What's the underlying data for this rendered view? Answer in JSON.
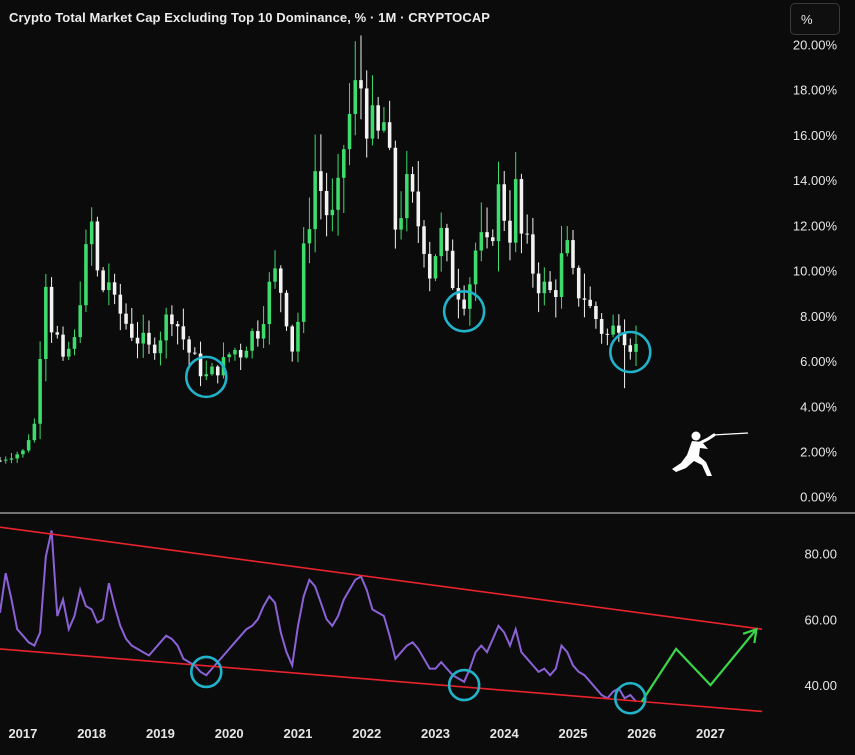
{
  "header": {
    "title": "Crypto Total Market Cap Excluding Top 10 Dominance, % · 1M · CRYPTOCAP",
    "unit_button": "%"
  },
  "colors": {
    "background": "#0b0b0c",
    "up_candle": "#3ddc6c",
    "down_candle": "#f2f2f2",
    "rsi_line": "#8b62d6",
    "trendline": "#e8232c",
    "highlight_circle": "#21b3c9",
    "projection_arrow": "#39d84a",
    "axis_text": "#e6e6e6",
    "divider": "#d8d8d8"
  },
  "icons": [
    "fencer-logo-icon"
  ],
  "chart_data": [
    {
      "type": "candlestick",
      "title": "Crypto Total Market Cap Excluding Top 10 Dominance, % · 1M · CRYPTOCAP",
      "x_axis": {
        "type": "date",
        "ticks": [
          "2017",
          "2018",
          "2019",
          "2020",
          "2021",
          "2022",
          "2023",
          "2024",
          "2025",
          "2026",
          "2027"
        ],
        "range": [
          "2016-09-01",
          "2028-02-01"
        ]
      },
      "y_axis": {
        "ticks": [
          "0.00%",
          "2.00%",
          "4.00%",
          "6.00%",
          "8.00%",
          "10.00%",
          "12.00%",
          "14.00%",
          "16.00%",
          "18.00%",
          "20.00%"
        ],
        "range": [
          -0.5,
          20.2
        ],
        "unit": "%"
      },
      "grid": false,
      "close_path": [
        [
          "2016-09",
          1.6
        ],
        [
          "2017-01",
          2.0
        ],
        [
          "2017-03",
          3.2
        ],
        [
          "2017-05",
          9.8
        ],
        [
          "2017-06",
          7.6
        ],
        [
          "2017-07",
          7.0
        ],
        [
          "2017-08",
          5.8
        ],
        [
          "2017-09",
          6.5
        ],
        [
          "2017-10",
          6.8
        ],
        [
          "2017-11",
          9.0
        ],
        [
          "2017-12",
          10.6
        ],
        [
          "2018-01",
          12.0
        ],
        [
          "2018-02",
          9.8
        ],
        [
          "2018-03",
          9.2
        ],
        [
          "2018-04",
          9.6
        ],
        [
          "2018-05",
          8.4
        ],
        [
          "2018-06",
          8.1
        ],
        [
          "2018-07",
          7.7
        ],
        [
          "2018-08",
          7.3
        ],
        [
          "2018-09",
          7.0
        ],
        [
          "2018-10",
          6.8
        ],
        [
          "2018-11",
          6.5
        ],
        [
          "2018-12",
          6.8
        ],
        [
          "2019-01",
          7.2
        ],
        [
          "2019-02",
          7.8
        ],
        [
          "2019-03",
          8.2
        ],
        [
          "2019-04",
          7.6
        ],
        [
          "2019-05",
          7.0
        ],
        [
          "2019-06",
          6.4
        ],
        [
          "2019-07",
          6.0
        ],
        [
          "2019-08",
          5.6
        ],
        [
          "2019-09",
          5.3
        ],
        [
          "2019-10",
          5.5
        ],
        [
          "2019-11",
          5.7
        ],
        [
          "2019-12",
          5.9
        ],
        [
          "2020-01",
          6.3
        ],
        [
          "2020-02",
          6.5
        ],
        [
          "2020-03",
          6.4
        ],
        [
          "2020-04",
          6.8
        ],
        [
          "2020-05",
          7.2
        ],
        [
          "2020-06",
          7.4
        ],
        [
          "2020-07",
          8.2
        ],
        [
          "2020-08",
          9.2
        ],
        [
          "2020-09",
          9.8
        ],
        [
          "2020-10",
          9.2
        ],
        [
          "2020-11",
          8.0
        ],
        [
          "2020-12",
          6.6
        ],
        [
          "2021-01",
          7.8
        ],
        [
          "2021-02",
          10.6
        ],
        [
          "2021-03",
          12.5
        ],
        [
          "2021-04",
          14.4
        ],
        [
          "2021-05",
          13.6
        ],
        [
          "2021-06",
          12.6
        ],
        [
          "2021-07",
          12.2
        ],
        [
          "2021-08",
          13.2
        ],
        [
          "2021-09",
          15.5
        ],
        [
          "2021-10",
          16.8
        ],
        [
          "2021-11",
          17.8
        ],
        [
          "2021-12",
          18.2
        ],
        [
          "2022-01",
          16.9
        ],
        [
          "2022-02",
          16.2
        ],
        [
          "2022-03",
          15.8
        ],
        [
          "2022-04",
          16.5
        ],
        [
          "2022-05",
          14.5
        ],
        [
          "2022-06",
          12.0
        ],
        [
          "2022-07",
          12.8
        ],
        [
          "2022-08",
          13.5
        ],
        [
          "2022-09",
          12.9
        ],
        [
          "2022-10",
          12.1
        ],
        [
          "2022-11",
          11.4
        ],
        [
          "2022-12",
          10.0
        ],
        [
          "2023-01",
          10.9
        ],
        [
          "2023-02",
          11.5
        ],
        [
          "2023-03",
          10.3
        ],
        [
          "2023-04",
          9.6
        ],
        [
          "2023-05",
          9.2
        ],
        [
          "2023-06",
          8.9
        ],
        [
          "2023-07",
          9.6
        ],
        [
          "2023-08",
          10.9
        ],
        [
          "2023-09",
          11.1
        ],
        [
          "2023-10",
          10.8
        ],
        [
          "2023-11",
          12.0
        ],
        [
          "2023-12",
          13.4
        ],
        [
          "2024-01",
          12.6
        ],
        [
          "2024-02",
          11.8
        ],
        [
          "2024-03",
          13.5
        ],
        [
          "2024-04",
          11.5
        ],
        [
          "2024-05",
          10.9
        ],
        [
          "2024-06",
          10.1
        ],
        [
          "2024-07",
          9.5
        ],
        [
          "2024-08",
          9.2
        ],
        [
          "2024-09",
          9.0
        ],
        [
          "2024-10",
          9.3
        ],
        [
          "2024-11",
          10.4
        ],
        [
          "2024-12",
          10.8
        ],
        [
          "2025-01",
          9.6
        ],
        [
          "2025-02",
          9.1
        ],
        [
          "2025-03",
          8.9
        ],
        [
          "2025-04",
          8.3
        ],
        [
          "2025-05",
          7.9
        ],
        [
          "2025-06",
          7.4
        ],
        [
          "2025-07",
          7.1
        ],
        [
          "2025-08",
          7.4
        ],
        [
          "2025-09",
          7.8
        ],
        [
          "2025-10",
          7.2
        ],
        [
          "2025-11",
          6.8
        ],
        [
          "2025-12",
          6.6
        ]
      ],
      "low_points": [
        1.4,
        2.9,
        5.4,
        6.4,
        4.8
      ],
      "high_point": 19.5,
      "highlighted_lows": [
        {
          "date": "2019-09",
          "value": 5.3
        },
        {
          "date": "2023-06",
          "value": 8.2
        },
        {
          "date": "2025-11",
          "value": 6.4
        }
      ]
    },
    {
      "type": "line",
      "x_axis": {
        "type": "date",
        "range": [
          "2016-09-01",
          "2028-02-01"
        ]
      },
      "y_axis": {
        "ticks": [
          "80.00",
          "60.00",
          "40.00"
        ],
        "range": [
          30,
          92
        ]
      },
      "series": [
        {
          "points": [
            [
              "2016-09",
              62
            ],
            [
              "2016-10",
              74
            ],
            [
              "2016-11",
              66
            ],
            [
              "2016-12",
              57
            ],
            [
              "2017-01",
              55
            ],
            [
              "2017-02",
              53
            ],
            [
              "2017-03",
              52
            ],
            [
              "2017-04",
              56
            ],
            [
              "2017-05",
              79
            ],
            [
              "2017-06",
              87
            ],
            [
              "2017-07",
              61
            ],
            [
              "2017-08",
              66
            ],
            [
              "2017-09",
              57
            ],
            [
              "2017-10",
              61
            ],
            [
              "2017-11",
              69
            ],
            [
              "2017-12",
              64
            ],
            [
              "2018-01",
              63
            ],
            [
              "2018-02",
              59
            ],
            [
              "2018-03",
              60
            ],
            [
              "2018-04",
              71
            ],
            [
              "2018-05",
              64
            ],
            [
              "2018-06",
              58
            ],
            [
              "2018-07",
              54
            ],
            [
              "2018-08",
              52
            ],
            [
              "2018-09",
              51
            ],
            [
              "2018-10",
              50
            ],
            [
              "2018-11",
              49
            ],
            [
              "2018-12",
              51
            ],
            [
              "2019-01",
              53
            ],
            [
              "2019-02",
              55
            ],
            [
              "2019-03",
              54
            ],
            [
              "2019-04",
              52
            ],
            [
              "2019-05",
              48
            ],
            [
              "2019-06",
              47
            ],
            [
              "2019-07",
              46
            ],
            [
              "2019-08",
              44
            ],
            [
              "2019-09",
              43
            ],
            [
              "2019-10",
              45
            ],
            [
              "2019-11",
              47
            ],
            [
              "2019-12",
              49
            ],
            [
              "2020-01",
              51
            ],
            [
              "2020-02",
              53
            ],
            [
              "2020-03",
              55
            ],
            [
              "2020-04",
              57
            ],
            [
              "2020-05",
              58
            ],
            [
              "2020-06",
              60
            ],
            [
              "2020-07",
              64
            ],
            [
              "2020-08",
              67
            ],
            [
              "2020-09",
              65
            ],
            [
              "2020-10",
              56
            ],
            [
              "2020-11",
              50
            ],
            [
              "2020-12",
              46
            ],
            [
              "2021-01",
              58
            ],
            [
              "2021-02",
              67
            ],
            [
              "2021-03",
              72
            ],
            [
              "2021-04",
              70
            ],
            [
              "2021-05",
              65
            ],
            [
              "2021-06",
              60
            ],
            [
              "2021-07",
              58
            ],
            [
              "2021-08",
              61
            ],
            [
              "2021-09",
              66
            ],
            [
              "2021-10",
              69
            ],
            [
              "2021-11",
              72
            ],
            [
              "2021-12",
              73
            ],
            [
              "2022-01",
              69
            ],
            [
              "2022-02",
              63
            ],
            [
              "2022-03",
              62
            ],
            [
              "2022-04",
              61
            ],
            [
              "2022-05",
              55
            ],
            [
              "2022-06",
              48
            ],
            [
              "2022-07",
              50
            ],
            [
              "2022-08",
              52
            ],
            [
              "2022-09",
              53
            ],
            [
              "2022-10",
              51
            ],
            [
              "2022-11",
              48
            ],
            [
              "2022-12",
              45
            ],
            [
              "2023-01",
              45
            ],
            [
              "2023-02",
              47
            ],
            [
              "2023-03",
              45
            ],
            [
              "2023-04",
              43
            ],
            [
              "2023-05",
              42
            ],
            [
              "2023-06",
              41
            ],
            [
              "2023-07",
              45
            ],
            [
              "2023-08",
              50
            ],
            [
              "2023-09",
              52
            ],
            [
              "2023-10",
              50
            ],
            [
              "2023-11",
              54
            ],
            [
              "2023-12",
              58
            ],
            [
              "2024-01",
              56
            ],
            [
              "2024-02",
              52
            ],
            [
              "2024-03",
              57
            ],
            [
              "2024-04",
              50
            ],
            [
              "2024-05",
              48
            ],
            [
              "2024-06",
              46
            ],
            [
              "2024-07",
              44
            ],
            [
              "2024-08",
              45
            ],
            [
              "2024-09",
              43
            ],
            [
              "2024-10",
              45
            ],
            [
              "2024-11",
              52
            ],
            [
              "2024-12",
              50
            ],
            [
              "2025-01",
              46
            ],
            [
              "2025-02",
              44
            ],
            [
              "2025-03",
              43
            ],
            [
              "2025-04",
              41
            ],
            [
              "2025-05",
              39
            ],
            [
              "2025-06",
              37
            ],
            [
              "2025-07",
              36
            ],
            [
              "2025-08",
              38
            ],
            [
              "2025-09",
              39
            ],
            [
              "2025-10",
              36
            ],
            [
              "2025-11",
              37
            ],
            [
              "2025-12",
              35
            ]
          ]
        }
      ],
      "trendlines": [
        {
          "role": "upper",
          "from": [
            "2016-09",
            88
          ],
          "to": [
            "2027-10",
            57
          ]
        },
        {
          "role": "lower",
          "from": [
            "2016-09",
            51
          ],
          "to": [
            "2027-10",
            32
          ]
        }
      ],
      "projection": [
        [
          "2026-01",
          35
        ],
        [
          "2026-07",
          51
        ],
        [
          "2027-01",
          40
        ],
        [
          "2027-09",
          57
        ]
      ],
      "highlighted_lows": [
        {
          "date": "2019-09",
          "value": 44
        },
        {
          "date": "2023-06",
          "value": 40
        },
        {
          "date": "2025-11",
          "value": 36
        }
      ]
    }
  ]
}
